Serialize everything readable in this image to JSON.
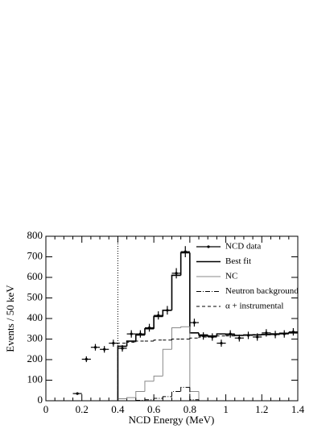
{
  "chart_data": {
    "type": "histogram",
    "xlabel": "NCD Energy (MeV)",
    "ylabel": "Events / 50 keV",
    "xlim": [
      0,
      1.4
    ],
    "ylim": [
      0,
      800
    ],
    "xticks": [
      0,
      0.2,
      0.4,
      0.6,
      0.8,
      1,
      1.2,
      1.4
    ],
    "yticks": [
      0,
      100,
      200,
      300,
      400,
      500,
      600,
      700,
      800
    ],
    "threshold_line": 0.4,
    "legend": "upper right",
    "bins": [
      0.4,
      0.45,
      0.5,
      0.55,
      0.6,
      0.65,
      0.7,
      0.75,
      0.8,
      0.85,
      0.9,
      0.95,
      1.0,
      1.05,
      1.1,
      1.15,
      1.2,
      1.25,
      1.3,
      1.35,
      1.4
    ],
    "data": {
      "name": "NCD data",
      "color": "#000000",
      "x": [
        0.175,
        0.225,
        0.275,
        0.325,
        0.375,
        0.425,
        0.475,
        0.525,
        0.575,
        0.625,
        0.675,
        0.725,
        0.775,
        0.825,
        0.875,
        0.925,
        0.975,
        1.025,
        1.075,
        1.125,
        1.175,
        1.225,
        1.275,
        1.325,
        1.375
      ],
      "values": [
        35,
        202,
        260,
        250,
        280,
        255,
        325,
        325,
        355,
        415,
        440,
        620,
        725,
        380,
        315,
        310,
        280,
        325,
        305,
        318,
        310,
        330,
        322,
        325,
        335
      ],
      "errors": [
        6,
        14,
        16,
        16,
        17,
        16,
        18,
        18,
        19,
        20,
        21,
        25,
        27,
        19,
        18,
        18,
        17,
        18,
        17,
        18,
        18,
        18,
        18,
        18,
        18
      ]
    },
    "series": [
      {
        "name": "Best fit",
        "color": "#000000",
        "style": "solid",
        "width": 1.6,
        "values": [
          265,
          290,
          320,
          350,
          410,
          440,
          610,
          720,
          330,
          320,
          315,
          325,
          322,
          318,
          320,
          320,
          322,
          325,
          328,
          330
        ]
      },
      {
        "name": "NC",
        "color": "#888888",
        "style": "solid",
        "width": 1,
        "values": [
          10,
          15,
          45,
          95,
          120,
          250,
          355,
          360,
          45,
          0,
          0,
          0,
          0,
          0,
          0,
          0,
          0,
          0,
          0,
          0
        ]
      },
      {
        "name": "Neutron background",
        "color": "#000000",
        "style": "dashdot",
        "width": 1,
        "values": [
          0,
          0,
          2,
          5,
          12,
          20,
          45,
          65,
          5,
          0,
          0,
          0,
          0,
          0,
          0,
          0,
          0,
          0,
          0,
          0
        ]
      },
      {
        "name": "α + instrumental",
        "color": "#000000",
        "style": "dashed",
        "width": 1,
        "values": [
          280,
          285,
          290,
          290,
          295,
          295,
          300,
          300,
          305,
          310,
          312,
          315,
          315,
          318,
          320,
          322,
          324,
          326,
          328,
          330
        ]
      }
    ]
  }
}
